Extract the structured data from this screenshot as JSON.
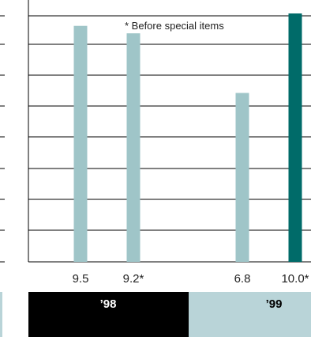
{
  "chart_data": {
    "type": "bar",
    "categories": [
      "9.5",
      "9.2*",
      "6.8",
      "10.0*"
    ],
    "values": [
      9.5,
      9.2,
      6.8,
      10.0
    ],
    "ylim": [
      0,
      10
    ],
    "grid": true,
    "annotation": "* Before special items",
    "groups": [
      {
        "label": "’98",
        "categories": [
          "9.5",
          "9.2*"
        ],
        "background": "#000000",
        "text_color": "#ffffff"
      },
      {
        "label": "’99",
        "categories": [
          "6.8",
          "10.0*"
        ],
        "background": "#b9d4d8",
        "text_color": "#000000"
      }
    ],
    "colors": {
      "bar": "#9fc5c8",
      "highlight_bar": "#006b69",
      "grid": "#000000"
    },
    "highlight_index": 3
  }
}
